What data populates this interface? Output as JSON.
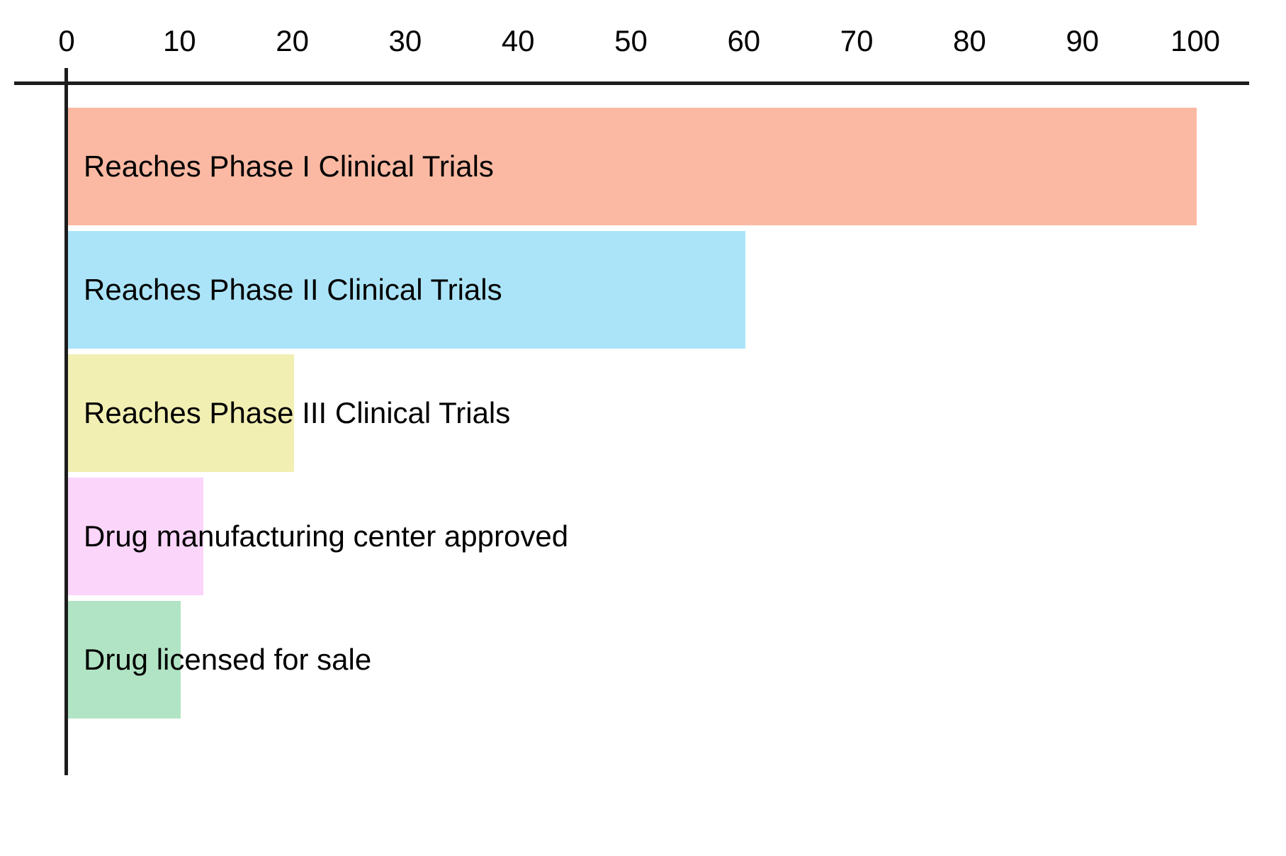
{
  "chart_data": {
    "type": "bar",
    "orientation": "horizontal",
    "title": "",
    "xlabel": "",
    "ylabel": "",
    "grid": false,
    "legend": false,
    "x_axis": {
      "position": "top",
      "range": [
        0,
        100
      ],
      "ticks": [
        0,
        10,
        20,
        30,
        40,
        50,
        60,
        70,
        80,
        90,
        100
      ]
    },
    "categories": [
      "Reaches Phase I Clinical Trials",
      "Reaches Phase II Clinical Trials",
      "Reaches Phase III Clinical Trials",
      "Drug manufacturing center approved",
      "Drug licensed for sale"
    ],
    "values": [
      100,
      60,
      20,
      12,
      10
    ],
    "bar_colors": [
      "#fbb9a3",
      "#abe4f8",
      "#f2efb3",
      "#fbd5fa",
      "#b1e4c4"
    ],
    "axis_color": "#1d1d1d",
    "text_color": "#000000",
    "label_placement": "inside-left"
  }
}
